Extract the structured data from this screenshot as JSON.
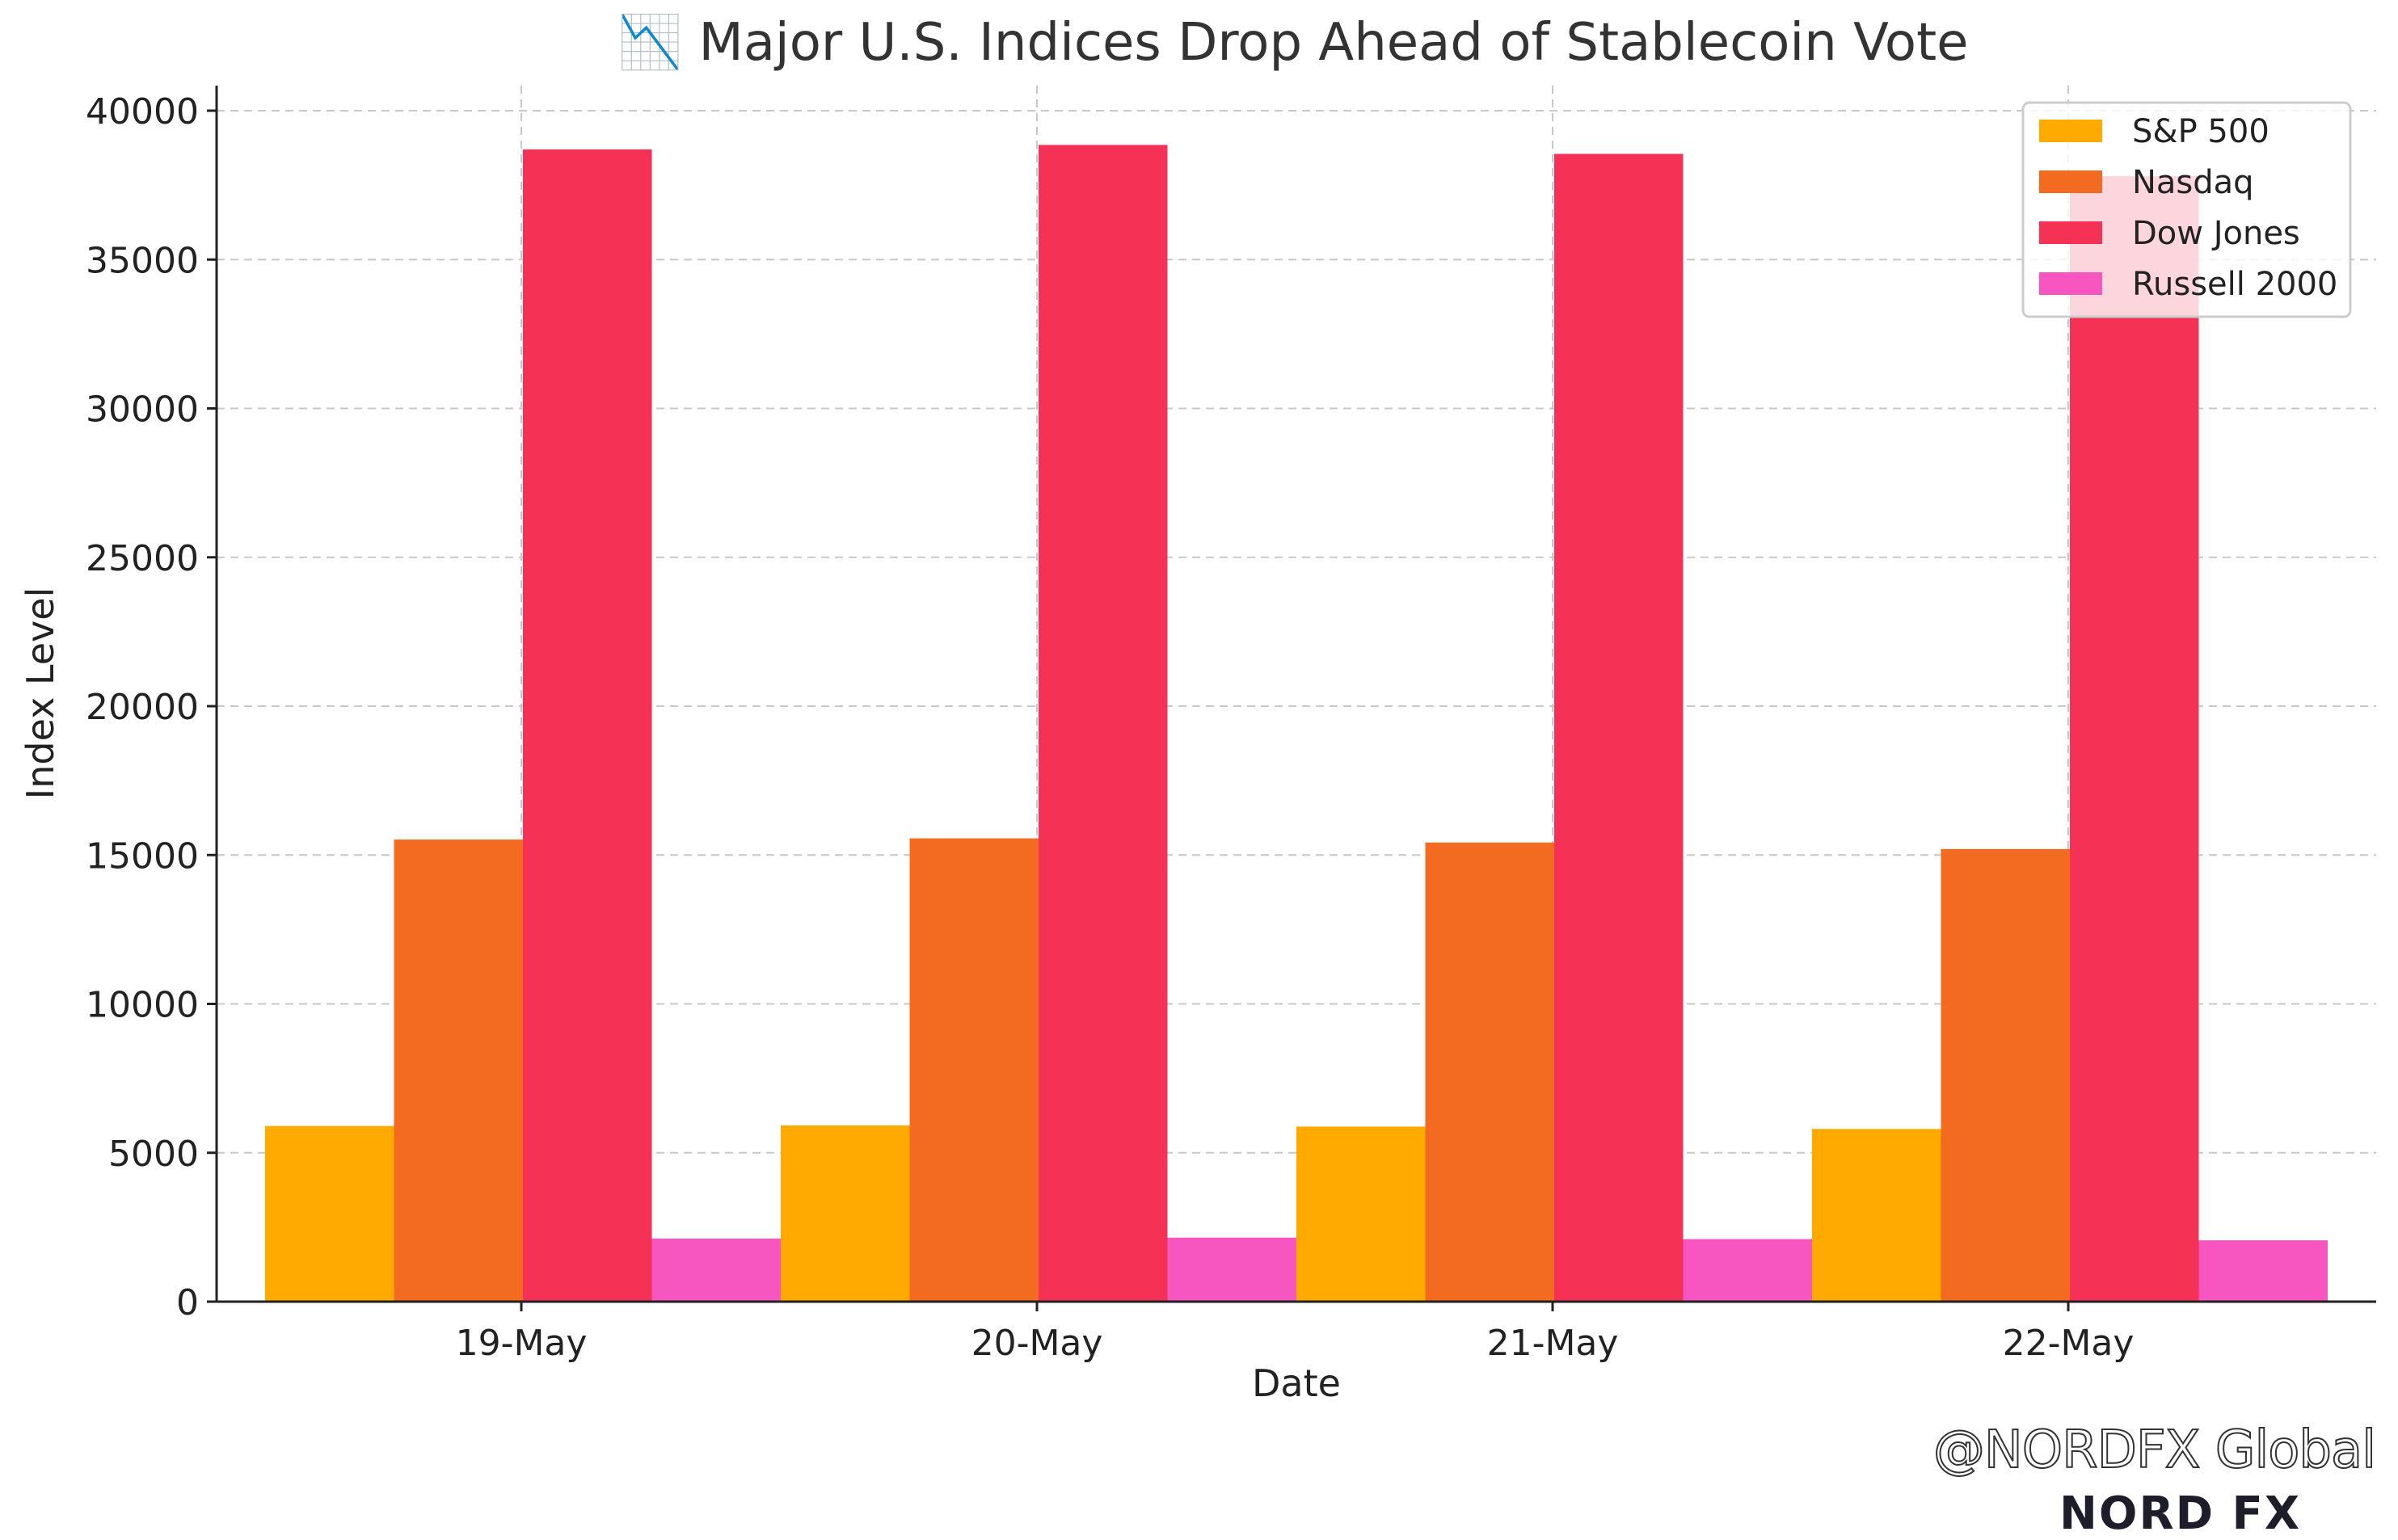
{
  "chart_data": {
    "type": "bar",
    "title": "📉 Major U.S. Indices Drop Ahead of Stablecoin Vote",
    "xlabel": "Date",
    "ylabel": "Index Level",
    "categories": [
      "19-May",
      "20-May",
      "21-May",
      "22-May"
    ],
    "series": [
      {
        "name": "S&P 500",
        "color": "#ffaa00",
        "values": [
          5900,
          5920,
          5880,
          5800
        ]
      },
      {
        "name": "Nasdaq",
        "color": "#f26b21",
        "values": [
          15520,
          15560,
          15420,
          15200
        ]
      },
      {
        "name": "Dow Jones",
        "color": "#f53255",
        "values": [
          38700,
          38850,
          38550,
          37800
        ]
      },
      {
        "name": "Russell 2000",
        "color": "#f756c0",
        "values": [
          2120,
          2150,
          2100,
          2060
        ]
      }
    ],
    "ylim": [
      0,
      40000
    ],
    "yticks": [
      "0",
      "5000",
      "10000",
      "15000",
      "20000",
      "25000",
      "30000",
      "35000",
      "40000"
    ],
    "grid": true,
    "legend_position": "top-right"
  },
  "watermark": "@NORDFX Global",
  "brand": "NORD FX"
}
